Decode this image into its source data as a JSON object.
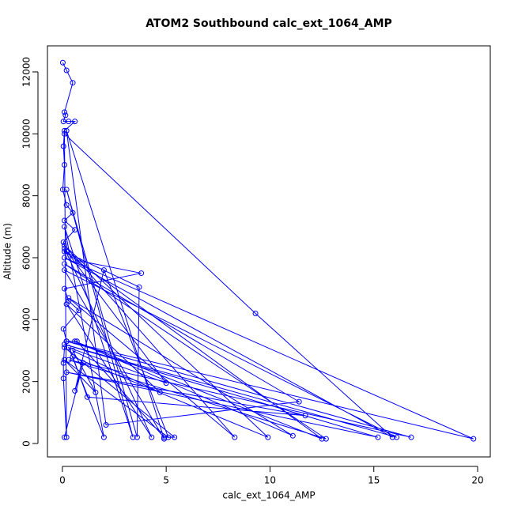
{
  "chart_data": {
    "type": "line",
    "title": "ATOM2 Southbound calc_ext_1064_AMP",
    "x_label": "calc_ext_1064_AMP",
    "y_label": "Altitude (m)",
    "x": [
      0.02,
      0.2,
      0.5,
      0.1,
      0.15,
      0.05,
      0.3,
      0.6,
      0.1,
      0.05,
      0.1,
      0.02,
      0.2,
      0.5,
      0.1,
      0.6,
      0.05,
      0.2,
      0.8,
      3.8,
      0.1,
      0.3,
      0.8,
      0.05,
      0.2,
      0.7,
      4.9,
      5.4,
      0.1,
      0.05,
      0.05,
      0.2,
      0.1,
      9.3,
      15.9,
      0.1,
      19.8,
      0.2,
      16.8,
      0.3,
      12.7,
      0.1,
      11.4,
      2.1,
      0.2,
      4.9,
      0.1,
      16.1,
      0.1,
      15.2,
      0.2,
      11.7,
      1.2,
      0.5,
      9.9,
      0.1,
      8.3,
      0.3,
      11.1,
      0.6,
      12.5,
      0.1,
      3.7,
      3.6,
      0.2,
      3.4,
      0.1,
      2.0,
      0.3,
      5.0,
      0.1,
      4.3,
      0.2,
      4.7,
      0.5,
      1.6,
      0.1,
      5.1,
      2.0,
      0.6,
      1.0,
      0.1
    ],
    "series": [
      {
        "name": "calc_ext_1064_AMP",
        "color": "#0000ff",
        "values": [
          12300,
          12050,
          11650,
          10700,
          10600,
          10400,
          10400,
          10400,
          10100,
          9600,
          9000,
          8200,
          7700,
          7450,
          7200,
          6900,
          6500,
          6200,
          5900,
          5500,
          5000,
          4600,
          4300,
          3700,
          3300,
          3300,
          200,
          200,
          3100,
          2600,
          2100,
          200,
          10000,
          4200,
          200,
          6000,
          150,
          3300,
          200,
          2700,
          150,
          5800,
          1350,
          600,
          10100,
          150,
          5600,
          200,
          3200,
          200,
          2300,
          900,
          1500,
          2800,
          200,
          6400,
          200,
          4700,
          250,
          3300,
          150,
          6200,
          5050,
          200,
          8200,
          200,
          7000,
          200,
          3100,
          1950,
          6300,
          200,
          4500,
          1650,
          3000,
          1650,
          2700,
          200,
          5600,
          1700,
          2600,
          200
        ]
      }
    ],
    "xlim": [
      -0.72,
      20.61
    ],
    "ylim": [
      -434,
      12842
    ],
    "xticks": [
      0,
      5,
      10,
      15,
      20
    ],
    "yticks": [
      0,
      2000,
      4000,
      6000,
      8000,
      10000,
      12000
    ]
  }
}
